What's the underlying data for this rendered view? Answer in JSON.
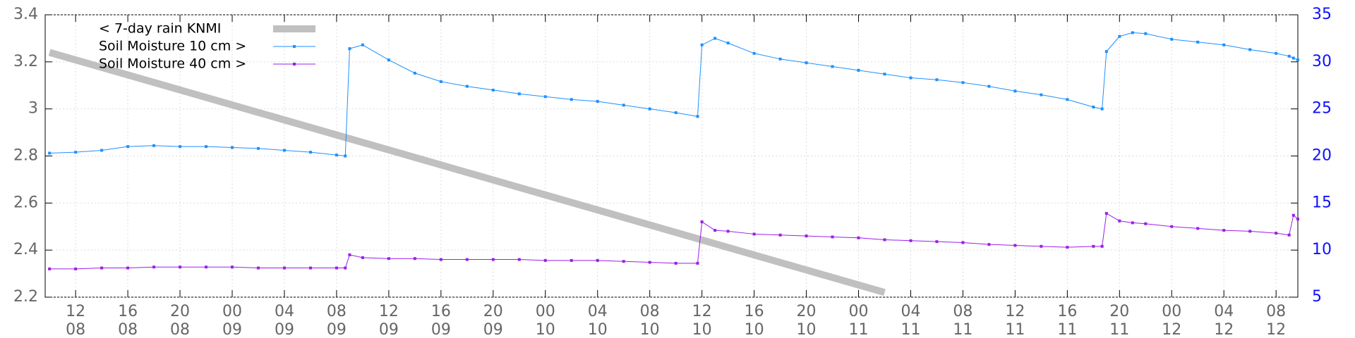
{
  "chart_data": {
    "type": "line",
    "xlim": [
      "08 09:40",
      "12 09:40"
    ],
    "xticks": [
      {
        "value": "08 12:00",
        "label": [
          "12",
          "08"
        ]
      },
      {
        "value": "08 16:00",
        "label": [
          "16",
          "08"
        ]
      },
      {
        "value": "08 20:00",
        "label": [
          "20",
          "08"
        ]
      },
      {
        "value": "09 00:00",
        "label": [
          "00",
          "09"
        ]
      },
      {
        "value": "09 04:00",
        "label": [
          "04",
          "09"
        ]
      },
      {
        "value": "09 08:00",
        "label": [
          "08",
          "09"
        ]
      },
      {
        "value": "09 12:00",
        "label": [
          "12",
          "09"
        ]
      },
      {
        "value": "09 16:00",
        "label": [
          "16",
          "09"
        ]
      },
      {
        "value": "09 20:00",
        "label": [
          "20",
          "09"
        ]
      },
      {
        "value": "10 00:00",
        "label": [
          "00",
          "10"
        ]
      },
      {
        "value": "10 04:00",
        "label": [
          "04",
          "10"
        ]
      },
      {
        "value": "10 08:00",
        "label": [
          "08",
          "10"
        ]
      },
      {
        "value": "10 12:00",
        "label": [
          "12",
          "10"
        ]
      },
      {
        "value": "10 16:00",
        "label": [
          "16",
          "10"
        ]
      },
      {
        "value": "10 20:00",
        "label": [
          "20",
          "10"
        ]
      },
      {
        "value": "11 00:00",
        "label": [
          "00",
          "11"
        ]
      },
      {
        "value": "11 04:00",
        "label": [
          "04",
          "11"
        ]
      },
      {
        "value": "11 08:00",
        "label": [
          "08",
          "11"
        ]
      },
      {
        "value": "11 12:00",
        "label": [
          "12",
          "11"
        ]
      },
      {
        "value": "11 16:00",
        "label": [
          "16",
          "11"
        ]
      },
      {
        "value": "11 20:00",
        "label": [
          "20",
          "11"
        ]
      },
      {
        "value": "12 00:00",
        "label": [
          "00",
          "12"
        ]
      },
      {
        "value": "12 04:00",
        "label": [
          "04",
          "12"
        ]
      },
      {
        "value": "12 08:00",
        "label": [
          "08",
          "12"
        ]
      }
    ],
    "ylim": [
      2.2,
      3.4
    ],
    "yticks": [
      2.2,
      2.4,
      2.6,
      2.8,
      3,
      3.2,
      3.4
    ],
    "y2lim": [
      5,
      35
    ],
    "y2ticks": [
      5,
      10,
      15,
      20,
      25,
      30,
      35
    ],
    "grid": true,
    "series": [
      {
        "name": "< 7-day rain KNMI",
        "color": "#c0c0c0",
        "width": 10,
        "markers": false,
        "x": [
          "08 10:00",
          "11 02:00"
        ],
        "values": [
          3.24,
          2.22
        ]
      },
      {
        "name": "Soil Moisture 10 cm >",
        "color": "#1e90ff",
        "axis": "y2",
        "width": 1,
        "markers": true,
        "x": [
          "08 10:00",
          "08 12:00",
          "08 14:00",
          "08 16:00",
          "08 18:00",
          "08 20:00",
          "08 22:00",
          "09 00:00",
          "09 02:00",
          "09 04:00",
          "09 06:00",
          "09 08:00",
          "09 08:40",
          "09 09:00",
          "09 10:00",
          "09 12:00",
          "09 14:00",
          "09 16:00",
          "09 18:00",
          "09 20:00",
          "09 22:00",
          "10 00:00",
          "10 02:00",
          "10 04:00",
          "10 06:00",
          "10 08:00",
          "10 10:00",
          "10 11:40",
          "10 12:00",
          "10 13:00",
          "10 14:00",
          "10 16:00",
          "10 18:00",
          "10 20:00",
          "10 22:00",
          "11 00:00",
          "11 02:00",
          "11 04:00",
          "11 06:00",
          "11 08:00",
          "11 10:00",
          "11 12:00",
          "11 14:00",
          "11 16:00",
          "11 18:00",
          "11 18:40",
          "11 19:00",
          "11 20:00",
          "11 21:00",
          "11 22:00",
          "12 00:00",
          "12 02:00",
          "12 04:00",
          "12 06:00",
          "12 08:00",
          "12 09:00",
          "12 09:20",
          "12 09:40"
        ],
        "values": [
          20.3,
          20.4,
          20.6,
          21.0,
          21.1,
          21.0,
          21.0,
          20.9,
          20.8,
          20.6,
          20.4,
          20.1,
          20.0,
          31.4,
          31.8,
          30.2,
          28.8,
          27.9,
          27.4,
          27.0,
          26.6,
          26.3,
          26.0,
          25.8,
          25.4,
          25.0,
          24.6,
          24.2,
          31.8,
          32.5,
          32.0,
          30.9,
          30.3,
          29.9,
          29.5,
          29.1,
          28.7,
          28.3,
          28.1,
          27.8,
          27.4,
          26.9,
          26.5,
          26.0,
          25.2,
          25.0,
          31.1,
          32.7,
          33.1,
          33.0,
          32.4,
          32.1,
          31.8,
          31.3,
          30.9,
          30.6,
          30.4,
          30.2
        ]
      },
      {
        "name": "Soil Moisture 40 cm >",
        "color": "#9b1fe8",
        "axis": "y2",
        "width": 1,
        "markers": true,
        "x": [
          "08 10:00",
          "08 12:00",
          "08 14:00",
          "08 16:00",
          "08 18:00",
          "08 20:00",
          "08 22:00",
          "09 00:00",
          "09 02:00",
          "09 04:00",
          "09 06:00",
          "09 08:00",
          "09 08:40",
          "09 09:00",
          "09 10:00",
          "09 12:00",
          "09 14:00",
          "09 16:00",
          "09 18:00",
          "09 20:00",
          "09 22:00",
          "10 00:00",
          "10 02:00",
          "10 04:00",
          "10 06:00",
          "10 08:00",
          "10 10:00",
          "10 11:40",
          "10 12:00",
          "10 13:00",
          "10 14:00",
          "10 16:00",
          "10 18:00",
          "10 20:00",
          "10 22:00",
          "11 00:00",
          "11 02:00",
          "11 04:00",
          "11 06:00",
          "11 08:00",
          "11 10:00",
          "11 12:00",
          "11 14:00",
          "11 16:00",
          "11 18:00",
          "11 18:40",
          "11 19:00",
          "11 20:00",
          "11 21:00",
          "11 22:00",
          "12 00:00",
          "12 02:00",
          "12 04:00",
          "12 06:00",
          "12 08:00",
          "12 09:00",
          "12 09:20",
          "12 09:40"
        ],
        "values": [
          8.0,
          8.0,
          8.1,
          8.1,
          8.2,
          8.2,
          8.2,
          8.2,
          8.1,
          8.1,
          8.1,
          8.1,
          8.1,
          9.5,
          9.2,
          9.1,
          9.1,
          9.0,
          9.0,
          9.0,
          9.0,
          8.9,
          8.9,
          8.9,
          8.8,
          8.7,
          8.6,
          8.6,
          13.0,
          12.1,
          12.0,
          11.7,
          11.6,
          11.5,
          11.4,
          11.3,
          11.1,
          11.0,
          10.9,
          10.8,
          10.6,
          10.5,
          10.4,
          10.3,
          10.4,
          10.4,
          13.9,
          13.1,
          12.9,
          12.8,
          12.5,
          12.3,
          12.1,
          12.0,
          11.8,
          11.6,
          13.7,
          13.3
        ]
      }
    ]
  }
}
